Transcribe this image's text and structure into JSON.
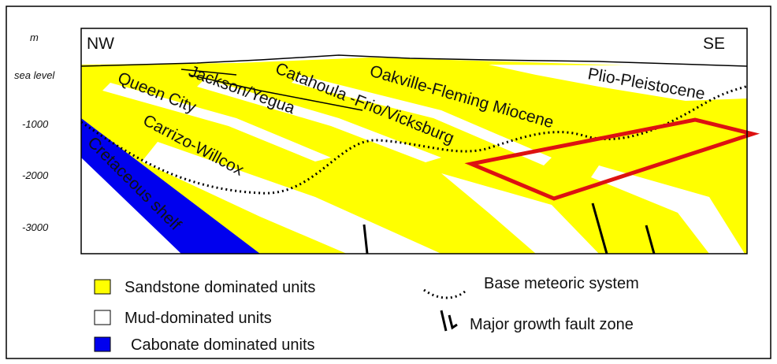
{
  "depth_axis": {
    "unit": "m",
    "labels": [
      "sea level",
      "-1000",
      "-2000",
      "-3000"
    ]
  },
  "directions": {
    "left": "NW",
    "right": "SE"
  },
  "units": {
    "queen_city": "Queen City",
    "jackson_yegua": "Jackson/Yegua",
    "catahoula": "Catahoula -Frio/Vicksburg",
    "oakville": "Oakville-Fleming Miocene",
    "carrizo": "Carrizo-Willcox",
    "cretaceous": "Cretaceous shelf",
    "plio": "Plio-Pleistocene"
  },
  "legend": {
    "sandstone": "Sandstone dominated units",
    "mud": "Mud-dominated units",
    "carbonate": "Cabonate dominated units",
    "meteoric": "Base meteoric system",
    "fault": "Major growth fault zone"
  }
}
